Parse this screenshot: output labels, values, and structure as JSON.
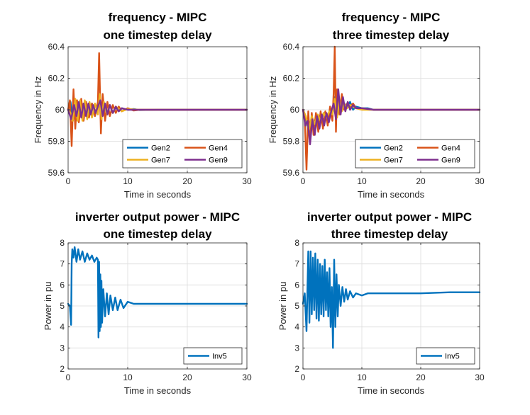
{
  "chart_data": [
    {
      "type": "line",
      "title": [
        "frequency - MIPC",
        "one timestep delay"
      ],
      "xlabel": "Time in seconds",
      "ylabel": "Frequency in Hz",
      "xlim": [
        0,
        30
      ],
      "ylim": [
        59.6,
        60.4
      ],
      "xticks": [
        0,
        10,
        20,
        30
      ],
      "yticks": [
        59.6,
        59.8,
        60,
        60.2,
        60.4
      ],
      "ytick_labels": [
        "59.6",
        "59.8",
        "60",
        "60.2",
        "60.4"
      ],
      "grid": true,
      "legend_position": "bottom-right",
      "legend_columns": 2,
      "series": [
        {
          "name": "Gen2",
          "color": "#0072BD",
          "x": [
            0,
            0.4,
            0.8,
            1.2,
            1.6,
            2.0,
            2.5,
            3.0,
            3.5,
            4.0,
            4.5,
            5.0,
            5.3,
            5.6,
            6.0,
            6.5,
            7.0,
            7.5,
            8.0,
            8.5,
            9.0,
            10,
            11,
            12,
            15,
            20,
            30
          ],
          "y": [
            60.0,
            60.05,
            59.93,
            60.06,
            59.95,
            60.05,
            59.95,
            60.05,
            59.96,
            60.04,
            59.96,
            60.03,
            60.06,
            59.95,
            60.04,
            59.97,
            60.03,
            59.98,
            60.015,
            59.99,
            60.01,
            60.0,
            60.005,
            59.998,
            60.0,
            60.0,
            60.0
          ]
        },
        {
          "name": "Gen4",
          "color": "#D95319",
          "x": [
            0,
            0.3,
            0.6,
            0.9,
            1.2,
            1.5,
            1.8,
            2.2,
            2.6,
            3.0,
            3.5,
            4.0,
            4.5,
            5.0,
            5.2,
            5.5,
            5.8,
            6.2,
            6.6,
            7.0,
            7.5,
            8.0,
            8.5,
            9.0,
            10,
            11,
            12,
            15,
            20,
            30
          ],
          "y": [
            60.0,
            60.06,
            59.77,
            60.13,
            59.88,
            60.06,
            59.92,
            60.07,
            59.93,
            60.05,
            59.95,
            60.04,
            59.96,
            60.05,
            60.36,
            59.85,
            60.1,
            59.93,
            60.05,
            59.96,
            60.03,
            59.98,
            60.02,
            59.99,
            60.01,
            59.995,
            60.0,
            60.0,
            60.0,
            60.0
          ]
        },
        {
          "name": "Gen7",
          "color": "#EDB120",
          "x": [
            0,
            0.4,
            0.8,
            1.2,
            1.6,
            2.0,
            2.4,
            2.8,
            3.2,
            3.6,
            4.0,
            4.5,
            5.0,
            5.3,
            5.6,
            6.0,
            6.5,
            7.0,
            7.5,
            8.0,
            9.0,
            10,
            12,
            15,
            20,
            30
          ],
          "y": [
            60.0,
            59.98,
            59.93,
            60.07,
            59.93,
            60.06,
            59.93,
            60.06,
            59.94,
            60.05,
            59.95,
            60.04,
            59.97,
            60.1,
            59.94,
            60.05,
            59.97,
            60.03,
            59.98,
            60.02,
            59.99,
            60.005,
            60.0,
            60.0,
            60.0,
            60.0
          ]
        },
        {
          "name": "Gen9",
          "color": "#7E2F8E",
          "x": [
            0,
            0.5,
            1.0,
            1.4,
            1.8,
            2.2,
            2.6,
            3.0,
            3.4,
            3.8,
            4.2,
            4.6,
            5.0,
            5.4,
            5.8,
            6.2,
            6.6,
            7.0,
            7.5,
            8.0,
            8.5,
            9.0,
            10,
            11,
            12,
            15,
            20,
            30
          ],
          "y": [
            60.0,
            59.94,
            60.03,
            59.96,
            60.05,
            59.95,
            60.04,
            59.96,
            60.04,
            59.97,
            60.03,
            59.98,
            60.02,
            60.06,
            59.96,
            60.04,
            59.97,
            60.03,
            59.98,
            60.02,
            59.99,
            60.01,
            60.0,
            60.0,
            60.0,
            60.0,
            60.0,
            60.0
          ]
        }
      ]
    },
    {
      "type": "line",
      "title": [
        "frequency - MIPC",
        "three timestep delay"
      ],
      "xlabel": "Time in seconds",
      "ylabel": "Frequency in Hz",
      "xlim": [
        0,
        30
      ],
      "ylim": [
        59.6,
        60.4
      ],
      "xticks": [
        0,
        10,
        20,
        30
      ],
      "yticks": [
        59.6,
        59.8,
        60,
        60.2,
        60.4
      ],
      "ytick_labels": [
        "59.6",
        "59.8",
        "60",
        "60.2",
        "60.4"
      ],
      "grid": true,
      "legend_position": "bottom-right",
      "legend_columns": 2,
      "series": [
        {
          "name": "Gen2",
          "color": "#0072BD",
          "x": [
            0,
            0.5,
            1.0,
            1.5,
            2.0,
            2.5,
            3.0,
            3.5,
            4.0,
            4.5,
            5.0,
            5.3,
            5.7,
            6.0,
            6.5,
            7.0,
            7.5,
            8.0,
            8.5,
            9.0,
            10,
            11,
            12,
            15,
            20,
            30
          ],
          "y": [
            60.0,
            59.95,
            59.85,
            59.95,
            59.9,
            59.97,
            59.92,
            59.98,
            59.94,
            59.99,
            59.97,
            60.08,
            59.96,
            60.07,
            60.0,
            60.04,
            60.02,
            60.05,
            60.0,
            60.02,
            60.01,
            60.01,
            60.0,
            60.0,
            60.0,
            60.0
          ]
        },
        {
          "name": "Gen4",
          "color": "#D95319",
          "x": [
            0,
            0.3,
            0.6,
            0.9,
            1.2,
            1.5,
            1.8,
            2.2,
            2.6,
            3.0,
            3.4,
            3.8,
            4.2,
            4.6,
            5.0,
            5.2,
            5.4,
            5.6,
            5.8,
            6.2,
            6.6,
            7.0,
            7.5,
            8.0,
            8.5,
            9.0,
            10,
            12,
            15,
            20,
            30
          ],
          "y": [
            60.0,
            59.95,
            59.62,
            59.99,
            59.8,
            59.98,
            59.84,
            59.98,
            59.86,
            59.99,
            59.88,
            59.99,
            59.9,
            60.02,
            59.93,
            60.1,
            60.4,
            59.86,
            60.13,
            59.97,
            60.1,
            60.0,
            60.04,
            60.02,
            60.04,
            60.01,
            60.01,
            60.0,
            60.0,
            60.0,
            60.0
          ]
        },
        {
          "name": "Gen7",
          "color": "#EDB120",
          "x": [
            0,
            0.5,
            1.0,
            1.5,
            2.0,
            2.5,
            3.0,
            3.5,
            4.0,
            4.5,
            5.0,
            5.4,
            5.8,
            6.2,
            6.6,
            7.0,
            7.5,
            8.0,
            9.0,
            10,
            12,
            15,
            20,
            30
          ],
          "y": [
            60.0,
            59.96,
            59.87,
            59.96,
            59.91,
            59.97,
            59.93,
            59.98,
            59.95,
            59.99,
            59.97,
            60.07,
            59.95,
            60.06,
            59.99,
            60.04,
            60.01,
            60.03,
            60.01,
            60.0,
            60.0,
            60.0,
            60.0,
            60.0
          ]
        },
        {
          "name": "Gen9",
          "color": "#7E2F8E",
          "x": [
            0,
            0.4,
            0.8,
            1.2,
            1.6,
            2.0,
            2.4,
            2.8,
            3.2,
            3.6,
            4.0,
            4.4,
            4.8,
            5.2,
            5.6,
            6.0,
            6.4,
            6.8,
            7.2,
            7.6,
            8.0,
            8.5,
            9.0,
            10,
            12,
            15,
            20,
            30
          ],
          "y": [
            60.0,
            59.9,
            59.93,
            59.78,
            59.94,
            59.84,
            59.96,
            59.88,
            59.97,
            59.9,
            59.98,
            59.92,
            59.99,
            60.04,
            59.94,
            60.13,
            59.97,
            60.08,
            59.99,
            60.05,
            60.0,
            60.03,
            60.01,
            60.01,
            60.0,
            60.0,
            60.0,
            60.0
          ]
        }
      ]
    },
    {
      "type": "line",
      "title": [
        "inverter output power - MIPC",
        "one timestep delay"
      ],
      "xlabel": "Time in seconds",
      "ylabel": "Power in pu",
      "xlim": [
        0,
        30
      ],
      "ylim": [
        2,
        8
      ],
      "xticks": [
        0,
        10,
        20,
        30
      ],
      "yticks": [
        2,
        3,
        4,
        5,
        6,
        7,
        8
      ],
      "ytick_labels": [
        "2",
        "3",
        "4",
        "5",
        "6",
        "7",
        "8"
      ],
      "grid": true,
      "legend_position": "bottom-right",
      "legend_columns": 1,
      "series": [
        {
          "name": "Inv5",
          "color": "#0072BD",
          "x": [
            0,
            0.3,
            0.5,
            0.6,
            0.7,
            0.9,
            1.1,
            1.4,
            1.7,
            2.0,
            2.4,
            2.8,
            3.2,
            3.6,
            4.0,
            4.4,
            4.8,
            5.0,
            5.1,
            5.2,
            5.3,
            5.4,
            5.5,
            5.6,
            5.7,
            5.9,
            6.2,
            6.5,
            6.8,
            7.1,
            7.5,
            7.9,
            8.3,
            8.8,
            9.3,
            10,
            11,
            12,
            15,
            20,
            30
          ],
          "y": [
            5.1,
            5.0,
            4.1,
            7.0,
            7.7,
            7.3,
            7.8,
            7.1,
            7.7,
            7.2,
            7.6,
            7.1,
            7.5,
            7.2,
            7.4,
            7.1,
            7.3,
            7.2,
            3.5,
            7.1,
            3.8,
            6.5,
            4.0,
            6.2,
            4.2,
            5.8,
            4.5,
            5.6,
            4.6,
            5.5,
            4.8,
            5.4,
            4.8,
            5.3,
            4.9,
            5.2,
            5.1,
            5.1,
            5.1,
            5.1,
            5.1
          ]
        }
      ]
    },
    {
      "type": "line",
      "title": [
        "inverter output power - MIPC",
        "three timestep delay"
      ],
      "xlabel": "Time in seconds",
      "ylabel": "Power in pu",
      "xlim": [
        0,
        30
      ],
      "ylim": [
        2,
        8
      ],
      "xticks": [
        0,
        10,
        20,
        30
      ],
      "yticks": [
        2,
        3,
        4,
        5,
        6,
        7,
        8
      ],
      "ytick_labels": [
        "2",
        "3",
        "4",
        "5",
        "6",
        "7",
        "8"
      ],
      "grid": true,
      "legend_position": "bottom-right",
      "legend_columns": 1,
      "series": [
        {
          "name": "Inv5",
          "color": "#0072BD",
          "x": [
            0,
            0.3,
            0.6,
            0.9,
            1.1,
            1.3,
            1.5,
            1.7,
            1.9,
            2.1,
            2.3,
            2.5,
            2.7,
            2.9,
            3.1,
            3.3,
            3.5,
            3.7,
            3.9,
            4.1,
            4.3,
            4.5,
            4.7,
            4.9,
            5.1,
            5.3,
            5.5,
            5.7,
            5.9,
            6.1,
            6.4,
            6.7,
            7.0,
            7.3,
            7.6,
            8.0,
            8.5,
            9.0,
            10,
            11,
            12,
            14,
            17,
            20,
            25,
            30
          ],
          "y": [
            5.1,
            5.6,
            3.8,
            7.6,
            4.2,
            7.6,
            4.6,
            7.3,
            4.8,
            7.5,
            4.4,
            7.2,
            4.3,
            7.0,
            4.6,
            6.9,
            4.5,
            7.2,
            4.8,
            6.6,
            4.5,
            6.8,
            4.0,
            5.9,
            3.0,
            7.2,
            4.0,
            6.5,
            4.5,
            6.0,
            5.0,
            5.9,
            5.2,
            5.8,
            5.3,
            5.7,
            5.4,
            5.6,
            5.5,
            5.6,
            5.6,
            5.6,
            5.6,
            5.6,
            5.65,
            5.65
          ]
        }
      ]
    }
  ]
}
